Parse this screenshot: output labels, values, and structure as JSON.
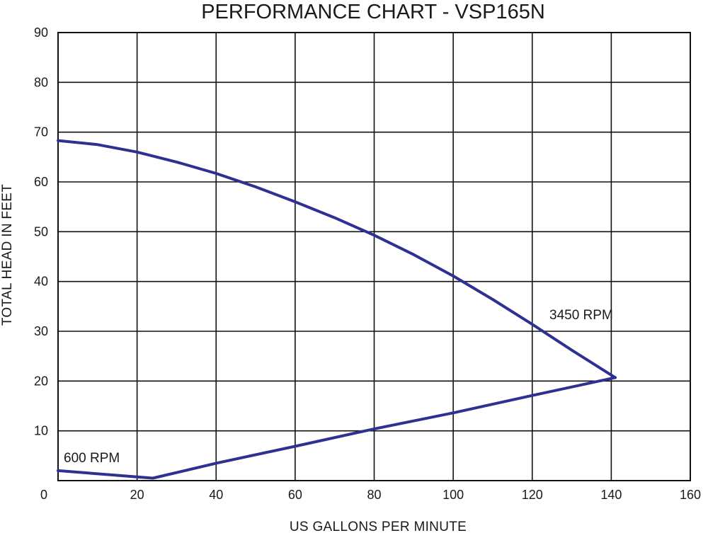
{
  "chart_data": {
    "type": "line",
    "title": "PERFORMANCE CHART - VSP165N",
    "xlabel": "US GALLONS PER MINUTE",
    "ylabel": "TOTAL HEAD IN FEET",
    "xlim": [
      0,
      160
    ],
    "ylim": [
      0,
      90
    ],
    "xticks": [
      0,
      20,
      40,
      60,
      80,
      100,
      120,
      140,
      160
    ],
    "yticks": [
      10,
      20,
      30,
      40,
      50,
      60,
      70,
      80,
      90
    ],
    "grid": true,
    "line_color": "#2E3192",
    "series": [
      {
        "name": "3450 RPM",
        "x": [
          0,
          10,
          20,
          30,
          40,
          50,
          60,
          70,
          80,
          90,
          100,
          110,
          120,
          130,
          141
        ],
        "y": [
          68.3,
          67.5,
          66.0,
          64.0,
          61.7,
          59.0,
          56.0,
          52.8,
          49.3,
          45.4,
          41.1,
          36.4,
          31.4,
          26.2,
          20.7
        ]
      },
      {
        "name": "600 RPM",
        "x": [
          0,
          24,
          40,
          60,
          80,
          100,
          120,
          141
        ],
        "y": [
          2.0,
          0.5,
          3.5,
          6.9,
          10.4,
          13.6,
          17.1,
          20.7
        ]
      }
    ],
    "annotations": [
      {
        "text": "3450 RPM",
        "x": 122,
        "y": 33
      },
      {
        "text": "600 RPM",
        "x": 1.5,
        "y": 3.8
      }
    ]
  }
}
